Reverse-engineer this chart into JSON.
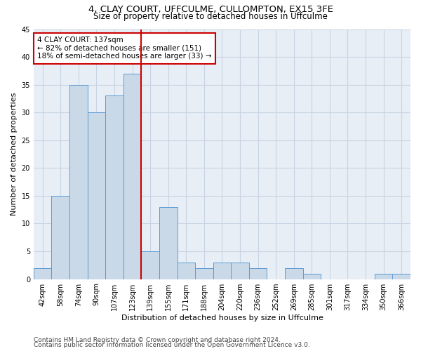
{
  "title_line1": "4, CLAY COURT, UFFCULME, CULLOMPTON, EX15 3FE",
  "title_line2": "Size of property relative to detached houses in Uffculme",
  "xlabel": "Distribution of detached houses by size in Uffculme",
  "ylabel": "Number of detached properties",
  "categories": [
    "42sqm",
    "58sqm",
    "74sqm",
    "90sqm",
    "107sqm",
    "123sqm",
    "139sqm",
    "155sqm",
    "171sqm",
    "188sqm",
    "204sqm",
    "220sqm",
    "236sqm",
    "252sqm",
    "269sqm",
    "285sqm",
    "301sqm",
    "317sqm",
    "334sqm",
    "350sqm",
    "366sqm"
  ],
  "values": [
    2,
    15,
    35,
    30,
    33,
    37,
    5,
    13,
    3,
    2,
    3,
    3,
    2,
    0,
    2,
    1,
    0,
    0,
    0,
    1,
    1
  ],
  "bar_color": "#c9d9e8",
  "bar_edge_color": "#5b9bd5",
  "vline_index": 6,
  "vline_color": "#cc0000",
  "annotation_text": "4 CLAY COURT: 137sqm\n← 82% of detached houses are smaller (151)\n18% of semi-detached houses are larger (33) →",
  "annotation_box_color": "white",
  "annotation_box_edge_color": "#cc0000",
  "ylim": [
    0,
    45
  ],
  "yticks": [
    0,
    5,
    10,
    15,
    20,
    25,
    30,
    35,
    40,
    45
  ],
  "grid_color": "#c8d4e3",
  "bg_color": "#e8eef5",
  "footer_line1": "Contains HM Land Registry data © Crown copyright and database right 2024.",
  "footer_line2": "Contains public sector information licensed under the Open Government Licence v3.0.",
  "title_fontsize": 9.5,
  "subtitle_fontsize": 8.5,
  "axis_label_fontsize": 8,
  "tick_fontsize": 7,
  "annotation_fontsize": 7.5,
  "footer_fontsize": 6.5
}
